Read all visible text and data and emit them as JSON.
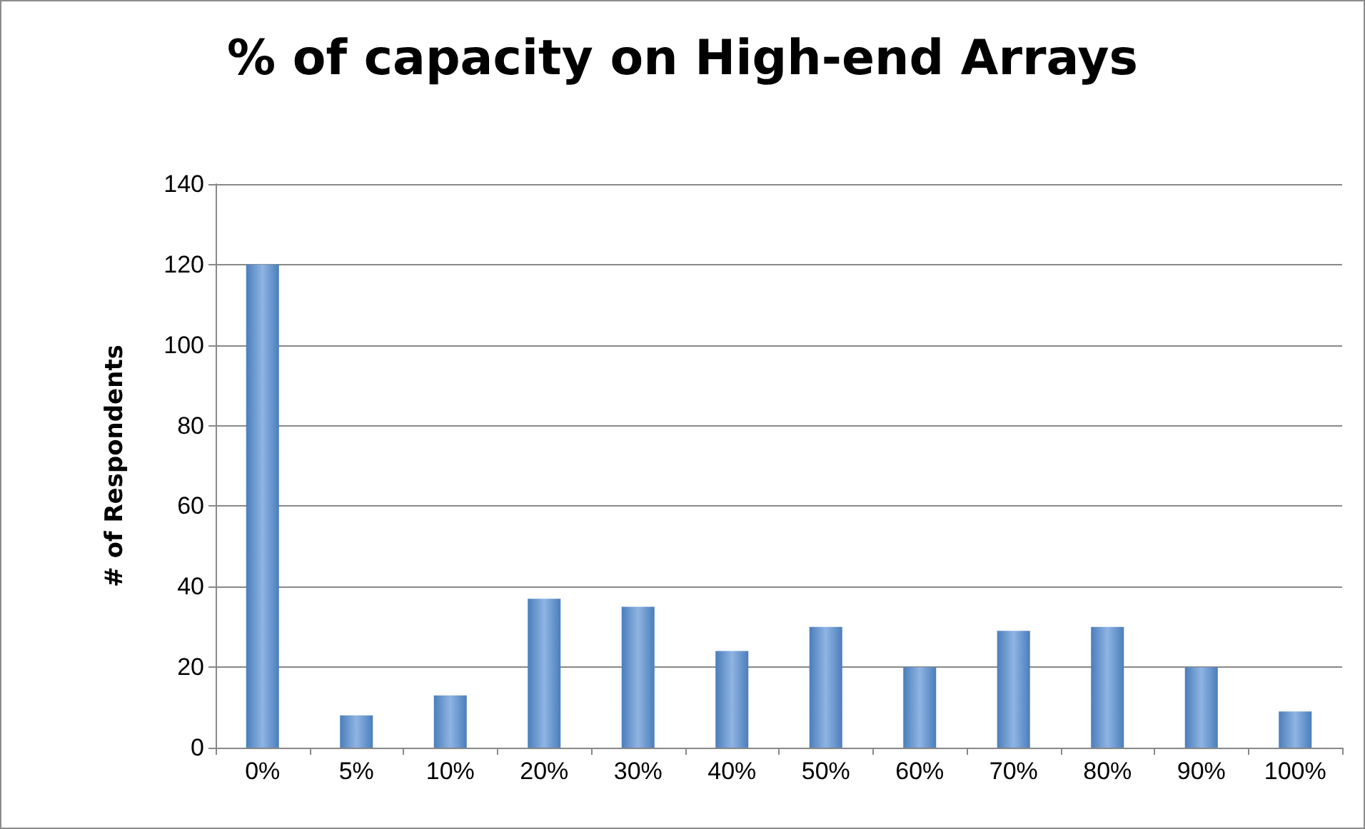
{
  "chart_data": {
    "type": "bar",
    "title": "% of capacity on High-end Arrays",
    "ylabel": "# of Respondents",
    "categories": [
      "0%",
      "5%",
      "10%",
      "20%",
      "30%",
      "40%",
      "50%",
      "60%",
      "70%",
      "80%",
      "90%",
      "100%"
    ],
    "values": [
      120,
      8,
      13,
      37,
      35,
      24,
      30,
      20,
      29,
      30,
      20,
      9
    ],
    "color": "#4a7ebb",
    "ylim": [
      0,
      140
    ],
    "yticks": [
      0,
      20,
      40,
      60,
      80,
      100,
      120,
      140
    ],
    "grid": "y"
  }
}
